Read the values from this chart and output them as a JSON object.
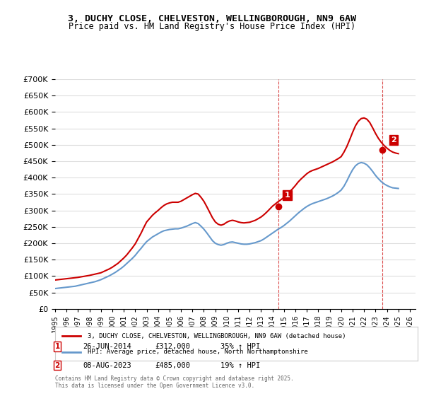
{
  "title_line1": "3, DUCHY CLOSE, CHELVESTON, WELLINGBOROUGH, NN9 6AW",
  "title_line2": "Price paid vs. HM Land Registry's House Price Index (HPI)",
  "red_label": "3, DUCHY CLOSE, CHELVESTON, WELLINGBOROUGH, NN9 6AW (detached house)",
  "blue_label": "HPI: Average price, detached house, North Northamptonshire",
  "annotation1_box": "1",
  "annotation1_date": "26-JUN-2014",
  "annotation1_price": "£312,000",
  "annotation1_hpi": "35% ↑ HPI",
  "annotation2_box": "2",
  "annotation2_date": "08-AUG-2023",
  "annotation2_price": "£485,000",
  "annotation2_hpi": "19% ↑ HPI",
  "footer": "Contains HM Land Registry data © Crown copyright and database right 2025.\nThis data is licensed under the Open Government Licence v3.0.",
  "red_color": "#cc0000",
  "blue_color": "#6699cc",
  "annotation_color": "#cc0000",
  "background_color": "#ffffff",
  "grid_color": "#dddddd",
  "ylim": [
    0,
    700000
  ],
  "xlim_start": 1995.0,
  "xlim_end": 2026.5,
  "sale1_x": 2014.49,
  "sale1_y": 312000,
  "sale2_x": 2023.6,
  "sale2_y": 485000,
  "dashed_x1": 2014.49,
  "dashed_x2": 2023.6,
  "red_years": [
    1995.0,
    1995.25,
    1995.5,
    1995.75,
    1996.0,
    1996.25,
    1996.5,
    1996.75,
    1997.0,
    1997.25,
    1997.5,
    1997.75,
    1998.0,
    1998.25,
    1998.5,
    1998.75,
    1999.0,
    1999.25,
    1999.5,
    1999.75,
    2000.0,
    2000.25,
    2000.5,
    2000.75,
    2001.0,
    2001.25,
    2001.5,
    2001.75,
    2002.0,
    2002.25,
    2002.5,
    2002.75,
    2003.0,
    2003.25,
    2003.5,
    2003.75,
    2004.0,
    2004.25,
    2004.5,
    2004.75,
    2005.0,
    2005.25,
    2005.5,
    2005.75,
    2006.0,
    2006.25,
    2006.5,
    2006.75,
    2007.0,
    2007.25,
    2007.5,
    2007.75,
    2008.0,
    2008.25,
    2008.5,
    2008.75,
    2009.0,
    2009.25,
    2009.5,
    2009.75,
    2010.0,
    2010.25,
    2010.5,
    2010.75,
    2011.0,
    2011.25,
    2011.5,
    2011.75,
    2012.0,
    2012.25,
    2012.5,
    2012.75,
    2013.0,
    2013.25,
    2013.5,
    2013.75,
    2014.0,
    2014.25,
    2014.5,
    2014.75,
    2015.0,
    2015.25,
    2015.5,
    2015.75,
    2016.0,
    2016.25,
    2016.5,
    2016.75,
    2017.0,
    2017.25,
    2017.5,
    2017.75,
    2018.0,
    2018.25,
    2018.5,
    2018.75,
    2019.0,
    2019.25,
    2019.5,
    2019.75,
    2020.0,
    2020.25,
    2020.5,
    2020.75,
    2021.0,
    2021.25,
    2021.5,
    2021.75,
    2022.0,
    2022.25,
    2022.5,
    2022.75,
    2023.0,
    2023.25,
    2023.5,
    2023.75,
    2024.0,
    2024.25,
    2024.5,
    2024.75,
    2025.0
  ],
  "red_values": [
    88000,
    89000,
    90000,
    91000,
    92000,
    93000,
    94000,
    95000,
    96000,
    97500,
    99000,
    100500,
    102000,
    104000,
    106000,
    108000,
    110000,
    114000,
    118000,
    122000,
    127000,
    133000,
    139000,
    147000,
    155000,
    164000,
    175000,
    186000,
    198000,
    214000,
    230000,
    248000,
    265000,
    275000,
    285000,
    293000,
    300000,
    308000,
    315000,
    320000,
    323000,
    325000,
    325000,
    325000,
    328000,
    333000,
    338000,
    343000,
    348000,
    352000,
    350000,
    340000,
    328000,
    312000,
    295000,
    278000,
    265000,
    258000,
    255000,
    258000,
    264000,
    268000,
    270000,
    268000,
    265000,
    263000,
    262000,
    263000,
    264000,
    267000,
    270000,
    275000,
    280000,
    287000,
    295000,
    304000,
    313000,
    320000,
    327000,
    333000,
    340000,
    348000,
    357000,
    366000,
    376000,
    387000,
    396000,
    404000,
    412000,
    418000,
    422000,
    425000,
    428000,
    432000,
    436000,
    440000,
    444000,
    448000,
    453000,
    458000,
    464000,
    478000,
    495000,
    516000,
    538000,
    558000,
    572000,
    580000,
    582000,
    578000,
    568000,
    552000,
    535000,
    520000,
    508000,
    498000,
    490000,
    483000,
    478000,
    475000,
    473000
  ],
  "blue_years": [
    1995.0,
    1995.25,
    1995.5,
    1995.75,
    1996.0,
    1996.25,
    1996.5,
    1996.75,
    1997.0,
    1997.25,
    1997.5,
    1997.75,
    1998.0,
    1998.25,
    1998.5,
    1998.75,
    1999.0,
    1999.25,
    1999.5,
    1999.75,
    2000.0,
    2000.25,
    2000.5,
    2000.75,
    2001.0,
    2001.25,
    2001.5,
    2001.75,
    2002.0,
    2002.25,
    2002.5,
    2002.75,
    2003.0,
    2003.25,
    2003.5,
    2003.75,
    2004.0,
    2004.25,
    2004.5,
    2004.75,
    2005.0,
    2005.25,
    2005.5,
    2005.75,
    2006.0,
    2006.25,
    2006.5,
    2006.75,
    2007.0,
    2007.25,
    2007.5,
    2007.75,
    2008.0,
    2008.25,
    2008.5,
    2008.75,
    2009.0,
    2009.25,
    2009.5,
    2009.75,
    2010.0,
    2010.25,
    2010.5,
    2010.75,
    2011.0,
    2011.25,
    2011.5,
    2011.75,
    2012.0,
    2012.25,
    2012.5,
    2012.75,
    2013.0,
    2013.25,
    2013.5,
    2013.75,
    2014.0,
    2014.25,
    2014.5,
    2014.75,
    2015.0,
    2015.25,
    2015.5,
    2015.75,
    2016.0,
    2016.25,
    2016.5,
    2016.75,
    2017.0,
    2017.25,
    2017.5,
    2017.75,
    2018.0,
    2018.25,
    2018.5,
    2018.75,
    2019.0,
    2019.25,
    2019.5,
    2019.75,
    2020.0,
    2020.25,
    2020.5,
    2020.75,
    2021.0,
    2021.25,
    2021.5,
    2021.75,
    2022.0,
    2022.25,
    2022.5,
    2022.75,
    2023.0,
    2023.25,
    2023.5,
    2023.75,
    2024.0,
    2024.25,
    2024.5,
    2024.75,
    2025.0
  ],
  "blue_values": [
    62000,
    63000,
    64000,
    65000,
    66000,
    67000,
    68000,
    69000,
    71000,
    73000,
    75000,
    77000,
    79000,
    81000,
    83000,
    86000,
    89000,
    93000,
    97000,
    101000,
    106000,
    111000,
    117000,
    123000,
    130000,
    138000,
    146000,
    154000,
    163000,
    174000,
    184000,
    195000,
    205000,
    212000,
    219000,
    224000,
    229000,
    234000,
    238000,
    240000,
    242000,
    243000,
    244000,
    244000,
    246000,
    249000,
    252000,
    256000,
    260000,
    263000,
    260000,
    252000,
    243000,
    232000,
    220000,
    208000,
    200000,
    196000,
    194000,
    196000,
    200000,
    203000,
    204000,
    202000,
    200000,
    198000,
    197000,
    197000,
    198000,
    200000,
    202000,
    205000,
    208000,
    213000,
    219000,
    225000,
    231000,
    237000,
    243000,
    248000,
    254000,
    261000,
    268000,
    276000,
    284000,
    292000,
    299000,
    306000,
    312000,
    317000,
    321000,
    324000,
    327000,
    330000,
    333000,
    336000,
    340000,
    344000,
    349000,
    355000,
    362000,
    374000,
    390000,
    408000,
    424000,
    436000,
    443000,
    446000,
    444000,
    439000,
    430000,
    419000,
    407000,
    397000,
    388000,
    381000,
    376000,
    372000,
    369000,
    368000,
    367000
  ]
}
